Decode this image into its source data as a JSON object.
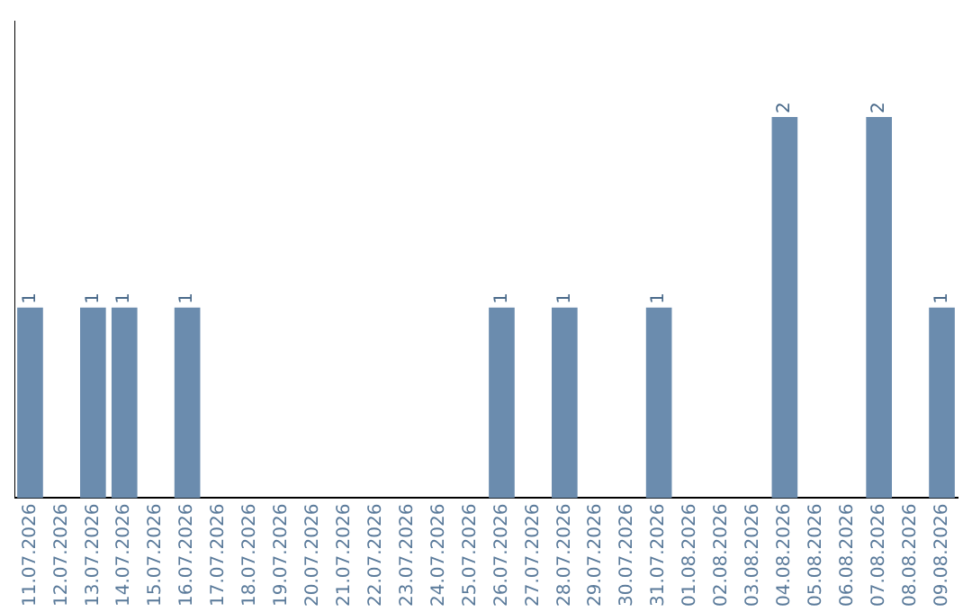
{
  "chart_data": {
    "type": "bar",
    "categories": [
      "11.07.2026",
      "12.07.2026",
      "13.07.2026",
      "14.07.2026",
      "15.07.2026",
      "16.07.2026",
      "17.07.2026",
      "18.07.2026",
      "19.07.2026",
      "20.07.2026",
      "21.07.2026",
      "22.07.2026",
      "23.07.2026",
      "24.07.2026",
      "25.07.2026",
      "26.07.2026",
      "27.07.2026",
      "28.07.2026",
      "29.07.2026",
      "30.07.2026",
      "31.07.2026",
      "01.08.2026",
      "02.08.2026",
      "03.08.2026",
      "04.08.2026",
      "05.08.2026",
      "06.08.2026",
      "07.08.2026",
      "08.08.2026",
      "09.08.2026"
    ],
    "values": [
      1,
      0,
      1,
      1,
      0,
      1,
      0,
      0,
      0,
      0,
      0,
      0,
      0,
      0,
      0,
      1,
      0,
      1,
      0,
      0,
      1,
      0,
      0,
      0,
      2,
      0,
      0,
      2,
      0,
      1
    ],
    "value_labels": [
      "1",
      null,
      "1",
      "1",
      null,
      "1",
      null,
      null,
      null,
      null,
      null,
      null,
      null,
      null,
      null,
      "1",
      null,
      "1",
      null,
      null,
      "1",
      null,
      null,
      null,
      "2",
      null,
      null,
      "2",
      null,
      "1"
    ],
    "color": "#6b8cae",
    "grid": false,
    "legend": false,
    "tick_labels": "x"
  }
}
